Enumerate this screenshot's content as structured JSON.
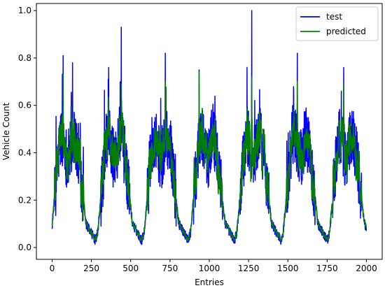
{
  "chart_data": {
    "type": "line",
    "title": "",
    "xlabel": "Entries",
    "ylabel": "Vehicle Count",
    "xlim": [
      -100,
      2100
    ],
    "ylim": [
      -0.05,
      1.03
    ],
    "xticks": [
      0,
      250,
      500,
      750,
      1000,
      1250,
      1500,
      1750,
      2000
    ],
    "yticks": [
      0.0,
      0.2,
      0.4,
      0.6,
      0.8,
      1.0
    ],
    "grid": false,
    "legend_position": "top-right",
    "period": 295,
    "cycles": 6,
    "n_points": 2000,
    "series": [
      {
        "name": "test",
        "color": "#0000ff",
        "approx_shape": "daily cycle, baseline ~0.02, daytime plateau ~0.4 with noise up to ~0.6-0.75, spikes",
        "peaks": [
          {
            "x": 70,
            "y": 0.81
          },
          {
            "x": 130,
            "y": 0.78
          },
          {
            "x": 360,
            "y": 0.76
          },
          {
            "x": 440,
            "y": 0.93
          },
          {
            "x": 720,
            "y": 0.82
          },
          {
            "x": 935,
            "y": 0.75
          },
          {
            "x": 1240,
            "y": 0.76
          },
          {
            "x": 1270,
            "y": 1.0
          },
          {
            "x": 1560,
            "y": 0.82
          },
          {
            "x": 1855,
            "y": 0.76
          }
        ]
      },
      {
        "name": "predicted",
        "color": "#008000",
        "approx_shape": "smoothed version of test, baseline ~0.04, plateau ~0.4-0.5",
        "peaks": [
          {
            "x": 70,
            "y": 0.73
          },
          {
            "x": 440,
            "y": 0.69
          },
          {
            "x": 720,
            "y": 0.7
          },
          {
            "x": 935,
            "y": 0.74
          },
          {
            "x": 1270,
            "y": 0.72
          },
          {
            "x": 1560,
            "y": 0.7
          },
          {
            "x": 1855,
            "y": 0.69
          }
        ]
      }
    ]
  }
}
